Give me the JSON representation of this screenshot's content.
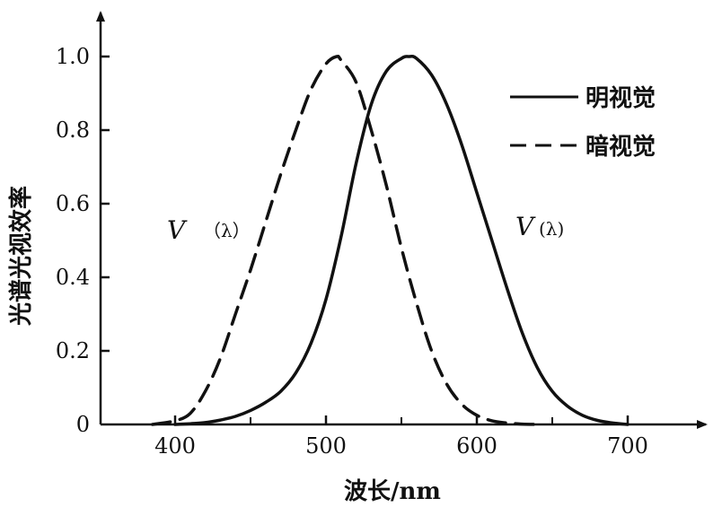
{
  "chart_data": {
    "type": "line",
    "xlabel": "波长/nm",
    "ylabel": "光谱光视效率",
    "xlim": [
      350,
      760
    ],
    "ylim": [
      0,
      1.0
    ],
    "xticks": [
      400,
      500,
      600,
      700
    ],
    "xtick_labels": [
      "400",
      "500",
      "600",
      "700"
    ],
    "yticks": [
      0,
      0.2,
      0.4,
      0.6,
      0.8,
      1.0
    ],
    "ytick_labels": [
      "0",
      "0.2",
      "0.4",
      "0.6",
      "0.8",
      "1.0"
    ],
    "x_minor_ticks": [
      450,
      550,
      650
    ],
    "grid": false,
    "legend_position": "top-right",
    "series": [
      {
        "name": "明视觉",
        "style": "solid",
        "color": "#111111",
        "x": [
          400,
          410,
          420,
          430,
          440,
          450,
          460,
          470,
          480,
          490,
          500,
          510,
          520,
          530,
          540,
          550,
          555,
          560,
          570,
          580,
          590,
          600,
          610,
          620,
          630,
          640,
          650,
          660,
          670,
          680,
          690,
          700
        ],
        "y": [
          0.0,
          0.002,
          0.005,
          0.012,
          0.022,
          0.038,
          0.06,
          0.09,
          0.14,
          0.22,
          0.34,
          0.51,
          0.71,
          0.87,
          0.96,
          0.995,
          1.0,
          0.995,
          0.95,
          0.87,
          0.76,
          0.63,
          0.5,
          0.37,
          0.25,
          0.155,
          0.09,
          0.05,
          0.025,
          0.011,
          0.004,
          0.0
        ]
      },
      {
        "name": "暗视觉",
        "style": "dashed",
        "color": "#111111",
        "x": [
          385,
          400,
          410,
          420,
          430,
          440,
          450,
          460,
          470,
          480,
          490,
          500,
          507,
          510,
          520,
          530,
          540,
          550,
          560,
          570,
          580,
          590,
          600,
          610,
          620,
          630,
          640
        ],
        "y": [
          0.0,
          0.01,
          0.03,
          0.09,
          0.18,
          0.3,
          0.42,
          0.55,
          0.68,
          0.8,
          0.91,
          0.98,
          1.0,
          0.99,
          0.93,
          0.8,
          0.65,
          0.48,
          0.33,
          0.2,
          0.11,
          0.055,
          0.025,
          0.01,
          0.004,
          0.001,
          0.0
        ]
      }
    ],
    "annotations": [
      {
        "label_main": "V",
        "label_sub": "（λ）",
        "series": "暗视觉"
      },
      {
        "label_main": "V",
        "label_sub": "(λ)",
        "series": "明视觉"
      }
    ]
  }
}
